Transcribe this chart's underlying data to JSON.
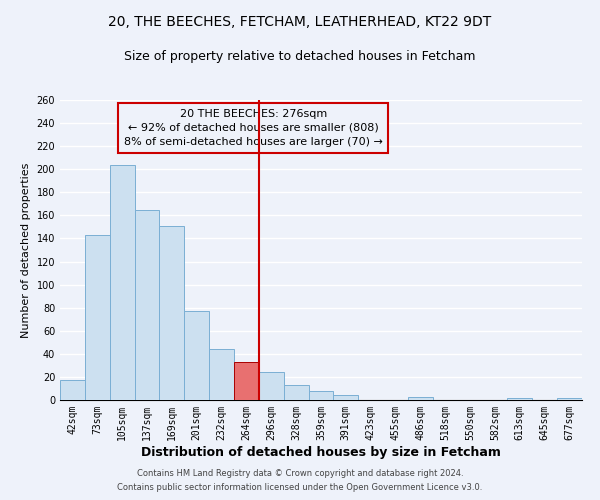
{
  "title1": "20, THE BEECHES, FETCHAM, LEATHERHEAD, KT22 9DT",
  "title2": "Size of property relative to detached houses in Fetcham",
  "xlabel": "Distribution of detached houses by size in Fetcham",
  "ylabel": "Number of detached properties",
  "footer1": "Contains HM Land Registry data © Crown copyright and database right 2024.",
  "footer2": "Contains public sector information licensed under the Open Government Licence v3.0.",
  "bar_labels": [
    "42sqm",
    "73sqm",
    "105sqm",
    "137sqm",
    "169sqm",
    "201sqm",
    "232sqm",
    "264sqm",
    "296sqm",
    "328sqm",
    "359sqm",
    "391sqm",
    "423sqm",
    "455sqm",
    "486sqm",
    "518sqm",
    "550sqm",
    "582sqm",
    "613sqm",
    "645sqm",
    "677sqm"
  ],
  "bar_values": [
    17,
    143,
    204,
    165,
    151,
    77,
    44,
    33,
    24,
    13,
    8,
    4,
    0,
    0,
    3,
    0,
    0,
    0,
    2,
    0,
    2
  ],
  "bar_color": "#cce0f0",
  "bar_edge_color": "#7aafd4",
  "highlight_index": 7,
  "highlight_bar_color": "#e87070",
  "highlight_bar_edge": "#aa0000",
  "highlight_line_color": "#cc0000",
  "annotation_text": "20 THE BEECHES: 276sqm\n← 92% of detached houses are smaller (808)\n8% of semi-detached houses are larger (70) →",
  "annotation_box_edge": "#cc0000",
  "ylim": [
    0,
    260
  ],
  "yticks": [
    0,
    20,
    40,
    60,
    80,
    100,
    120,
    140,
    160,
    180,
    200,
    220,
    240,
    260
  ],
  "background_color": "#eef2fa",
  "grid_color": "#ffffff",
  "title1_fontsize": 10,
  "title2_fontsize": 9,
  "xlabel_fontsize": 9,
  "ylabel_fontsize": 8,
  "tick_fontsize": 7,
  "annot_fontsize": 8,
  "footer_fontsize": 6
}
